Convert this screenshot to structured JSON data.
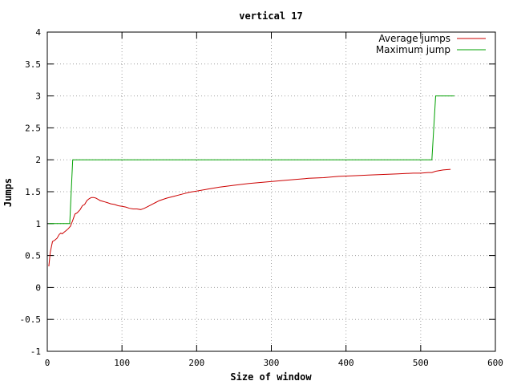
{
  "chart_data": {
    "type": "line",
    "title": "vertical 17",
    "xlabel": "Size of window",
    "ylabel": "Jumps",
    "xlim": [
      0,
      600
    ],
    "ylim": [
      -1,
      4
    ],
    "x_ticks": [
      0,
      100,
      200,
      300,
      400,
      500,
      600
    ],
    "x_tick_labels": [
      "0",
      "100",
      "200",
      "300",
      "400",
      "500",
      "600"
    ],
    "y_ticks": [
      -1,
      -0.5,
      0,
      0.5,
      1,
      1.5,
      2,
      2.5,
      3,
      3.5,
      4
    ],
    "y_tick_labels": [
      "-1",
      "-0.5",
      "0",
      "0.5",
      "1",
      "1.5",
      "2",
      "2.5",
      "3",
      "3.5",
      "4"
    ],
    "grid": true,
    "legend_position": "top-right",
    "series": [
      {
        "name": "Average jumps",
        "color": "#cc0000",
        "x": [
          2,
          4,
          7,
          10,
          13,
          16,
          18,
          20,
          22,
          25,
          28,
          31,
          34,
          37,
          40,
          44,
          47,
          50,
          53,
          56,
          59,
          62,
          65,
          68,
          71,
          74,
          77,
          80,
          85,
          90,
          95,
          100,
          105,
          110,
          115,
          120,
          125,
          130,
          135,
          140,
          145,
          150,
          160,
          170,
          180,
          190,
          200,
          215,
          230,
          250,
          270,
          290,
          310,
          330,
          350,
          370,
          390,
          410,
          430,
          450,
          470,
          490,
          500,
          510,
          515,
          520,
          530,
          540
        ],
        "y": [
          0.33,
          0.55,
          0.72,
          0.74,
          0.77,
          0.83,
          0.85,
          0.84,
          0.86,
          0.89,
          0.92,
          0.96,
          1.05,
          1.15,
          1.17,
          1.22,
          1.28,
          1.3,
          1.36,
          1.39,
          1.41,
          1.41,
          1.4,
          1.38,
          1.36,
          1.35,
          1.34,
          1.33,
          1.31,
          1.3,
          1.28,
          1.27,
          1.26,
          1.24,
          1.23,
          1.23,
          1.22,
          1.24,
          1.27,
          1.3,
          1.33,
          1.36,
          1.4,
          1.43,
          1.46,
          1.49,
          1.51,
          1.54,
          1.57,
          1.6,
          1.63,
          1.65,
          1.67,
          1.69,
          1.71,
          1.72,
          1.74,
          1.75,
          1.76,
          1.77,
          1.78,
          1.79,
          1.79,
          1.8,
          1.8,
          1.82,
          1.84,
          1.85
        ]
      },
      {
        "name": "Maximum jump",
        "color": "#00a000",
        "x": [
          2,
          30,
          34,
          515,
          520,
          545
        ],
        "y": [
          1,
          1,
          2,
          2,
          3,
          3
        ]
      }
    ]
  }
}
